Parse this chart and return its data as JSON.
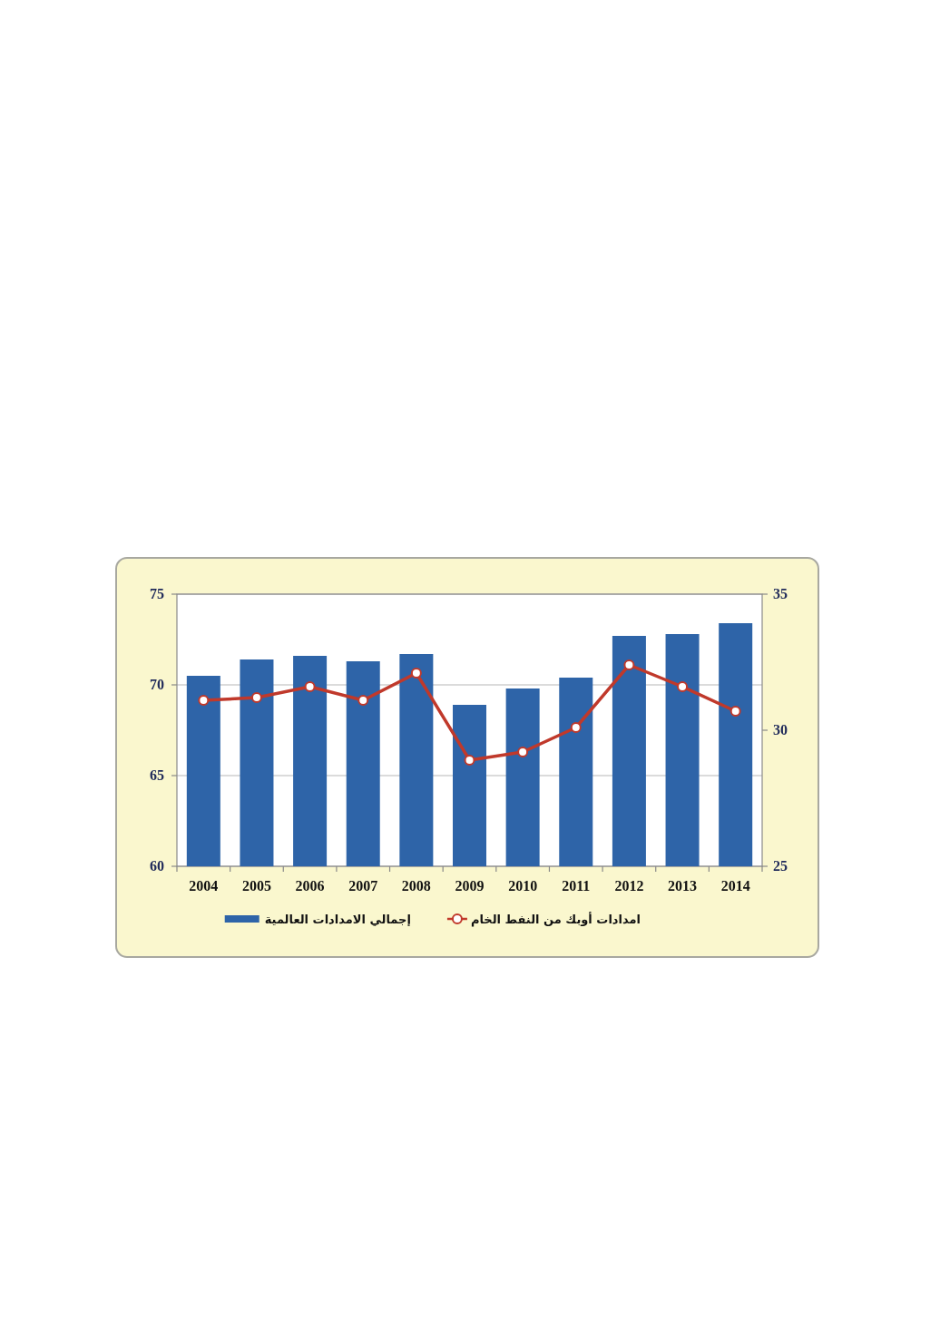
{
  "chart_data": {
    "type": "bar",
    "categories": [
      "2004",
      "2005",
      "2006",
      "2007",
      "2008",
      "2009",
      "2010",
      "2011",
      "2012",
      "2013",
      "2014"
    ],
    "series": [
      {
        "name": "إجمالي الامدادات العالمية",
        "color": "#2e64a8",
        "values": [
          70.5,
          71.4,
          71.6,
          71.3,
          71.7,
          68.9,
          69.8,
          70.4,
          72.7,
          72.8,
          73.4
        ]
      },
      {
        "name": "امدادات أوبك من النفط الخام",
        "type": "line",
        "axis": "y2",
        "color": "#c0392b",
        "marker": "circle",
        "values": [
          31.1,
          31.2,
          31.6,
          31.1,
          32.1,
          28.9,
          29.2,
          30.1,
          32.4,
          31.6,
          30.7
        ]
      }
    ],
    "ylim": [
      60,
      75
    ],
    "yticks": [
      60,
      65,
      70,
      75
    ],
    "y2lim": [
      25,
      35
    ],
    "y2ticks": [
      25,
      30,
      35
    ],
    "grid": "y",
    "legend": "bottom"
  }
}
